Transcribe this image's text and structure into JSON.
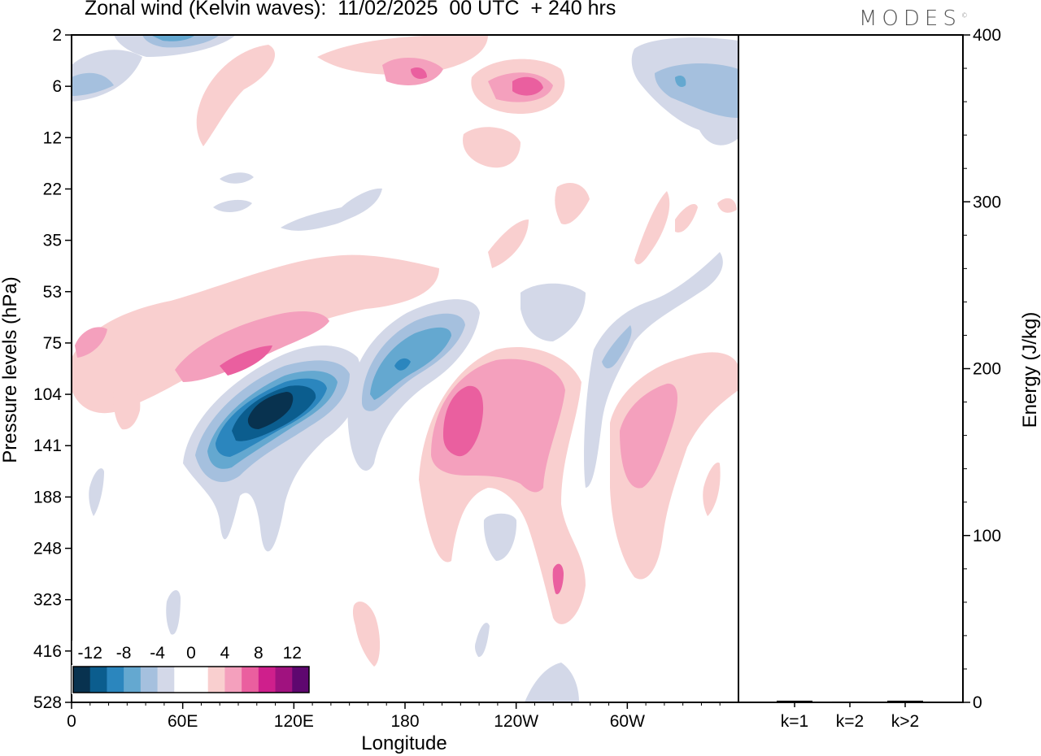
{
  "title": "Zonal wind (Kelvin waves):  11/02/2025  00 UTC  + 240 hrs",
  "brand": "MODES",
  "brand_mark": "©",
  "colors": {
    "scale": [
      "#08324f",
      "#0b5d8e",
      "#2b86be",
      "#64a8d0",
      "#a5c0de",
      "#d3d8e8",
      "#ffffff",
      "#ffffff",
      "#f9cfcf",
      "#f4a0bd",
      "#ea5f9f",
      "#cf1f8c",
      "#a0127f",
      "#5e076f"
    ],
    "axis": "#000000"
  },
  "chart_data": [
    {
      "type": "heatmap",
      "title": "Zonal wind (Kelvin waves):  11/02/2025  00 UTC  + 240 hrs",
      "xlabel": "Longitude",
      "ylabel": "Pressure levels (hPa)",
      "x_ticks": [
        "0",
        "60E",
        "120E",
        "180",
        "120W",
        "60W"
      ],
      "y_ticks": [
        "2",
        "6",
        "12",
        "22",
        "35",
        "53",
        "75",
        "104",
        "141",
        "188",
        "248",
        "323",
        "416",
        "528"
      ],
      "colorbar_labels": [
        "-12",
        "-8",
        "-4",
        "0",
        "4",
        "8",
        "12"
      ],
      "colorbar_levels": [
        -14,
        -12,
        -10,
        -8,
        -6,
        -4,
        -2,
        0,
        2,
        4,
        6,
        8,
        10,
        12,
        14
      ],
      "features": [
        {
          "sign": "negative",
          "peak": -13,
          "lon": 105,
          "level": 115
        },
        {
          "sign": "negative",
          "peak": -8,
          "lon": 165,
          "level": 90
        },
        {
          "sign": "positive",
          "peak": 8,
          "lon": 95,
          "level": 80
        },
        {
          "sign": "positive",
          "peak": 7,
          "lon": 220,
          "level": 120
        },
        {
          "sign": "positive",
          "peak": 6,
          "lon": 290,
          "level": 130
        },
        {
          "sign": "positive",
          "peak": 7,
          "lon": 240,
          "level": 6
        },
        {
          "sign": "negative",
          "peak": -5,
          "lon": 330,
          "level": 5
        }
      ]
    },
    {
      "type": "bar",
      "categories": [
        "k=1",
        "k=2",
        "k>2"
      ],
      "values": [
        1,
        0.5,
        1
      ],
      "ylabel": "Energy (J/kg)",
      "ylim": [
        0,
        400
      ],
      "y_ticks": [
        "0",
        "100",
        "200",
        "300",
        "400"
      ]
    }
  ]
}
